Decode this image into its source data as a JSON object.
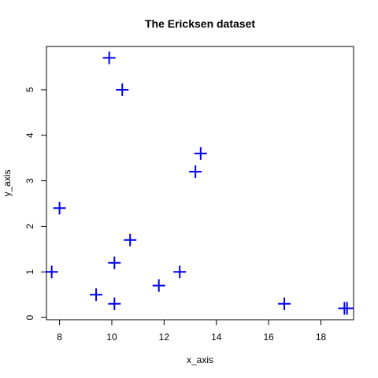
{
  "chart_data": {
    "type": "scatter",
    "title": "The Ericksen dataset",
    "xlabel": "x_axis",
    "ylabel": "y_axis",
    "xlim": [
      7.5,
      19.25
    ],
    "ylim": [
      -0.05,
      5.95
    ],
    "xticks": [
      8,
      10,
      12,
      14,
      16,
      18
    ],
    "yticks": [
      0,
      1,
      2,
      3,
      4,
      5
    ],
    "grid": false,
    "legend": "none",
    "marker": "plus",
    "marker_color": "#0000ee",
    "points": [
      {
        "x": 7.7,
        "y": 1.0
      },
      {
        "x": 8.0,
        "y": 2.4
      },
      {
        "x": 9.4,
        "y": 0.5
      },
      {
        "x": 9.9,
        "y": 5.7
      },
      {
        "x": 10.1,
        "y": 1.2
      },
      {
        "x": 10.1,
        "y": 0.3
      },
      {
        "x": 10.4,
        "y": 5.0
      },
      {
        "x": 10.7,
        "y": 1.7
      },
      {
        "x": 11.8,
        "y": 0.7
      },
      {
        "x": 12.6,
        "y": 1.0
      },
      {
        "x": 13.2,
        "y": 3.2
      },
      {
        "x": 13.4,
        "y": 3.6
      },
      {
        "x": 16.6,
        "y": 0.3
      },
      {
        "x": 18.9,
        "y": 0.2
      },
      {
        "x": 19.0,
        "y": 0.2
      }
    ]
  }
}
